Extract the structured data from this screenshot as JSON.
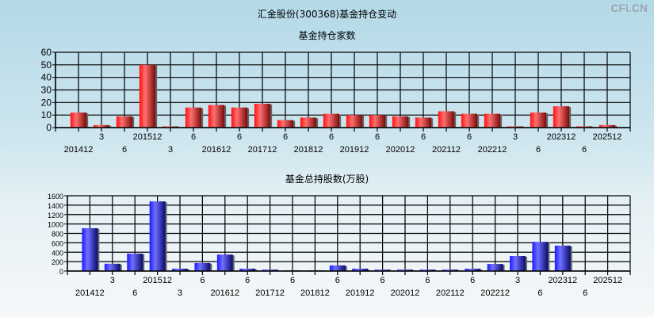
{
  "title": "汇金股份(300368)基金持仓变动",
  "watermark": "CFi.CN",
  "chart_data": [
    {
      "type": "bar",
      "title": "基金持仓家数",
      "color": "#e0101a",
      "ylim": [
        0,
        60
      ],
      "yticks": [
        0,
        10,
        20,
        30,
        40,
        50,
        60
      ],
      "grid": true,
      "categories": [
        "201412",
        "201503",
        "201506",
        "201512",
        "201603",
        "201606",
        "201612",
        "201706",
        "201712",
        "201806",
        "201812",
        "201906",
        "201912",
        "202006",
        "202012",
        "202106",
        "202112",
        "202206",
        "202212",
        "202303",
        "202306",
        "202312",
        "202406",
        "202512"
      ],
      "tick_labels": [
        "201412",
        "3",
        "6",
        "201512",
        "3",
        "6",
        "201612",
        "6",
        "201712",
        "6",
        "201812",
        "6",
        "201912",
        "6",
        "202012",
        "6",
        "202112",
        "6",
        "202212",
        "3",
        "6",
        "202312",
        "6",
        "202512"
      ],
      "values": [
        12,
        2,
        9,
        50,
        1,
        16,
        18,
        16,
        19,
        6,
        8,
        11,
        10,
        10,
        9,
        8,
        13,
        11,
        11,
        1,
        12,
        17,
        1,
        2
      ]
    },
    {
      "type": "bar",
      "title": "基金总持股数(万股)",
      "color": "#2020e0",
      "ylim": [
        0,
        1600
      ],
      "yticks": [
        0,
        200,
        400,
        600,
        800,
        1000,
        1200,
        1400,
        1600
      ],
      "grid": true,
      "categories": [
        "201412",
        "201503",
        "201506",
        "201512",
        "201603",
        "201606",
        "201612",
        "201706",
        "201712",
        "201806",
        "201812",
        "201906",
        "201912",
        "202006",
        "202012",
        "202106",
        "202112",
        "202206",
        "202212",
        "202303",
        "202306",
        "202312",
        "202406",
        "202512"
      ],
      "tick_labels": [
        "201412",
        "3",
        "6",
        "201512",
        "3",
        "6",
        "201612",
        "6",
        "201712",
        "6",
        "201812",
        "6",
        "201912",
        "6",
        "202012",
        "6",
        "202112",
        "6",
        "202212",
        "3",
        "6",
        "202312",
        "6",
        "202512"
      ],
      "values": [
        910,
        155,
        370,
        1480,
        50,
        170,
        350,
        50,
        30,
        15,
        15,
        120,
        50,
        30,
        30,
        30,
        30,
        50,
        150,
        320,
        620,
        540,
        10,
        10
      ]
    }
  ]
}
